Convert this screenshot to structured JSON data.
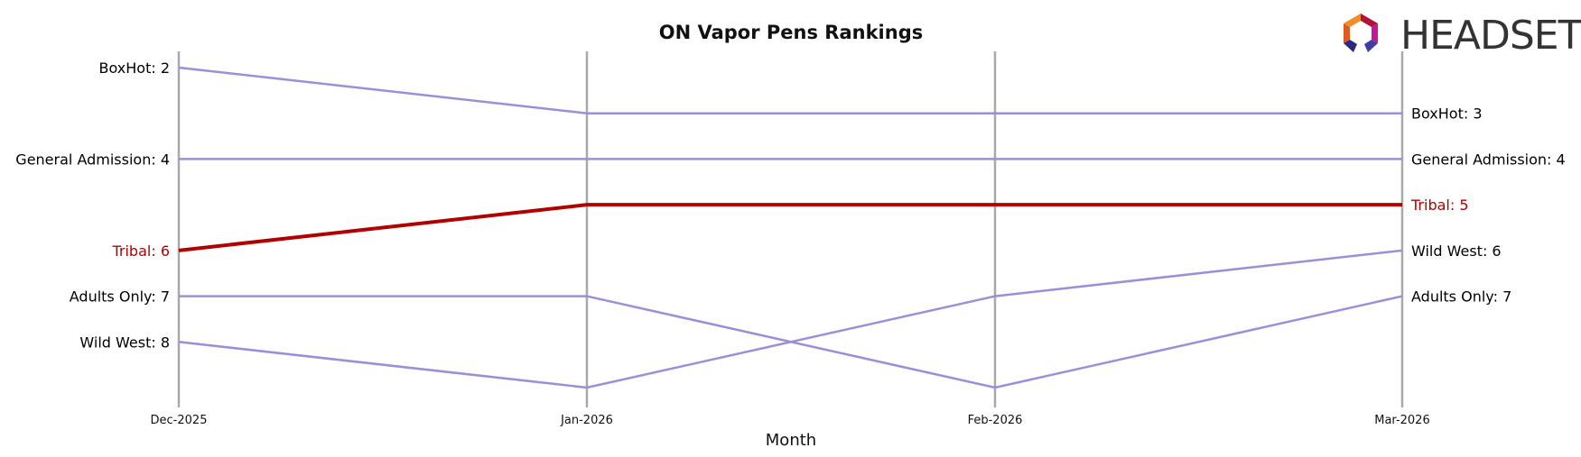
{
  "chart_data": {
    "type": "line",
    "title": "ON Vapor Pens Rankings",
    "xlabel": "Month",
    "ylabel": "",
    "x": [
      "Dec-2025",
      "Jan-2026",
      "Feb-2026",
      "Mar-2026"
    ],
    "y_rank_range": [
      2,
      9
    ],
    "y_inverted": true,
    "grid": false,
    "series": [
      {
        "name": "BoxHot",
        "values": [
          2,
          3,
          3,
          3
        ],
        "color": "#9b8fd9",
        "highlight": false
      },
      {
        "name": "General Admission",
        "values": [
          4,
          4,
          4,
          4
        ],
        "color": "#9b8fd9",
        "highlight": false
      },
      {
        "name": "Tribal",
        "values": [
          6,
          5,
          5,
          5
        ],
        "color": "#b00000",
        "highlight": true
      },
      {
        "name": "Adults Only",
        "values": [
          7,
          7,
          9,
          7
        ],
        "color": "#9b8fd9",
        "highlight": false
      },
      {
        "name": "Wild West",
        "values": [
          8,
          9,
          7,
          6
        ],
        "color": "#9b8fd9",
        "highlight": false
      }
    ],
    "left_labels": [
      {
        "text": "BoxHot: 2",
        "rank": 2,
        "color": "#000000"
      },
      {
        "text": "General Admission: 4",
        "rank": 4,
        "color": "#000000"
      },
      {
        "text": "Tribal: 6",
        "rank": 6,
        "color": "#b00000"
      },
      {
        "text": "Adults Only: 7",
        "rank": 7,
        "color": "#000000"
      },
      {
        "text": "Wild West: 8",
        "rank": 8,
        "color": "#000000"
      }
    ],
    "right_labels": [
      {
        "text": "BoxHot: 3",
        "rank": 3,
        "color": "#000000"
      },
      {
        "text": "General Admission: 4",
        "rank": 4,
        "color": "#000000"
      },
      {
        "text": "Tribal: 5",
        "rank": 5,
        "color": "#b00000"
      },
      {
        "text": "Wild West: 6",
        "rank": 6,
        "color": "#000000"
      },
      {
        "text": "Adults Only: 7",
        "rank": 7,
        "color": "#000000"
      }
    ]
  },
  "logo": {
    "text": "HEADSET"
  }
}
